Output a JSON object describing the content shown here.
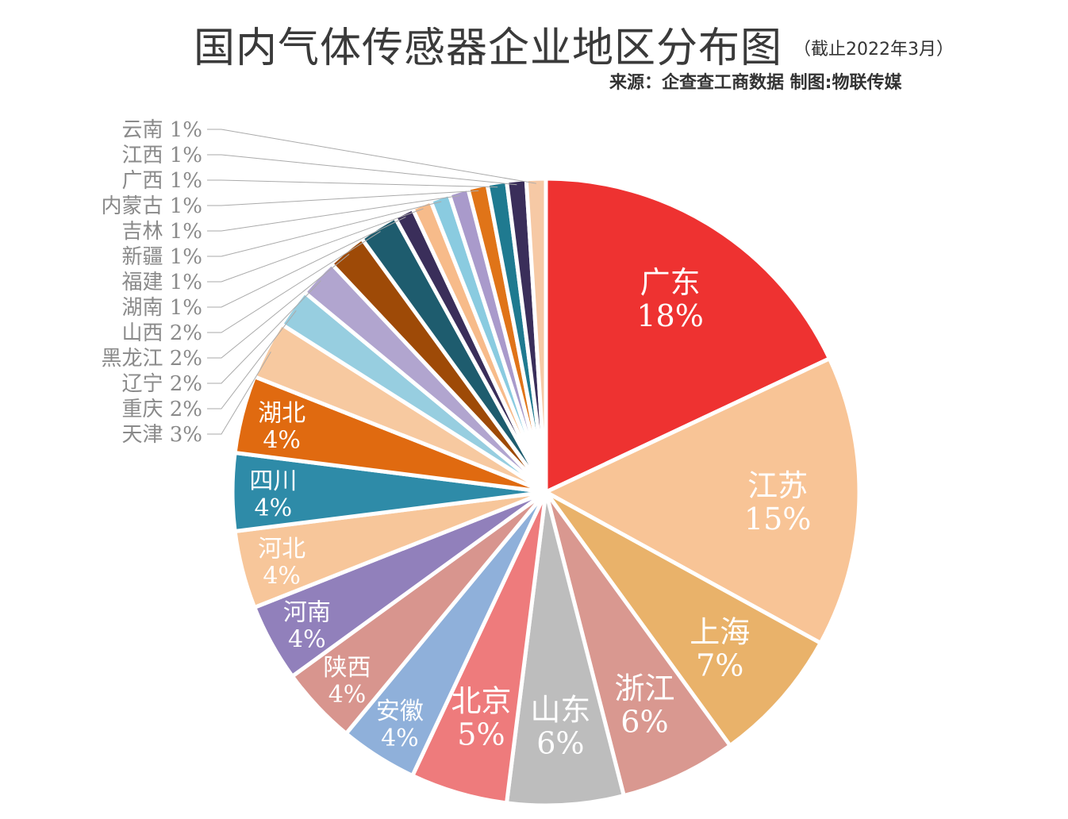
{
  "chart_data": {
    "type": "pie",
    "title": "国内气体传感器企业地区分布图",
    "subtitle": "（截止2022年3月）",
    "source": "来源：企查查工商数据    制图:物联传媒",
    "unit": "%",
    "start": "12 o'clock, clockwise",
    "slices": [
      {
        "label": "广东",
        "value": 18,
        "color": "#EE3231"
      },
      {
        "label": "江苏",
        "value": 15,
        "color": "#F8C496"
      },
      {
        "label": "上海",
        "value": 7,
        "color": "#E9B26A"
      },
      {
        "label": "浙江",
        "value": 6,
        "color": "#D99890"
      },
      {
        "label": "山东",
        "value": 6,
        "color": "#BDBDBD"
      },
      {
        "label": "北京",
        "value": 5,
        "color": "#EE7B7C"
      },
      {
        "label": "安徽",
        "value": 4,
        "color": "#8FB0DA"
      },
      {
        "label": "陕西",
        "value": 4,
        "color": "#D8958E"
      },
      {
        "label": "河南",
        "value": 4,
        "color": "#9180BB"
      },
      {
        "label": "河北",
        "value": 4,
        "color": "#F7C69A"
      },
      {
        "label": "四川",
        "value": 4,
        "color": "#2E8BA8"
      },
      {
        "label": "湖北",
        "value": 4,
        "color": "#E06A10"
      },
      {
        "label": "天津",
        "value": 3,
        "color": "#F7C9A0"
      },
      {
        "label": "重庆",
        "value": 2,
        "color": "#97CEE0"
      },
      {
        "label": "辽宁",
        "value": 2,
        "color": "#B1A5CF"
      },
      {
        "label": "黑龙江",
        "value": 2,
        "color": "#9E4A07"
      },
      {
        "label": "山西",
        "value": 2,
        "color": "#1E5C6E"
      },
      {
        "label": "湖南",
        "value": 1,
        "color": "#3A2E5A"
      },
      {
        "label": "福建",
        "value": 1,
        "color": "#F7BB8A"
      },
      {
        "label": "新疆",
        "value": 1,
        "color": "#8ACBE0"
      },
      {
        "label": "吉林",
        "value": 1,
        "color": "#A99ACB"
      },
      {
        "label": "内蒙古",
        "value": 1,
        "color": "#E07418"
      },
      {
        "label": "广西",
        "value": 1,
        "color": "#1F7A90"
      },
      {
        "label": "江西",
        "value": 1,
        "color": "#3A2E5A"
      },
      {
        "label": "云南",
        "value": 1,
        "color": "#F6C9A5"
      }
    ]
  }
}
